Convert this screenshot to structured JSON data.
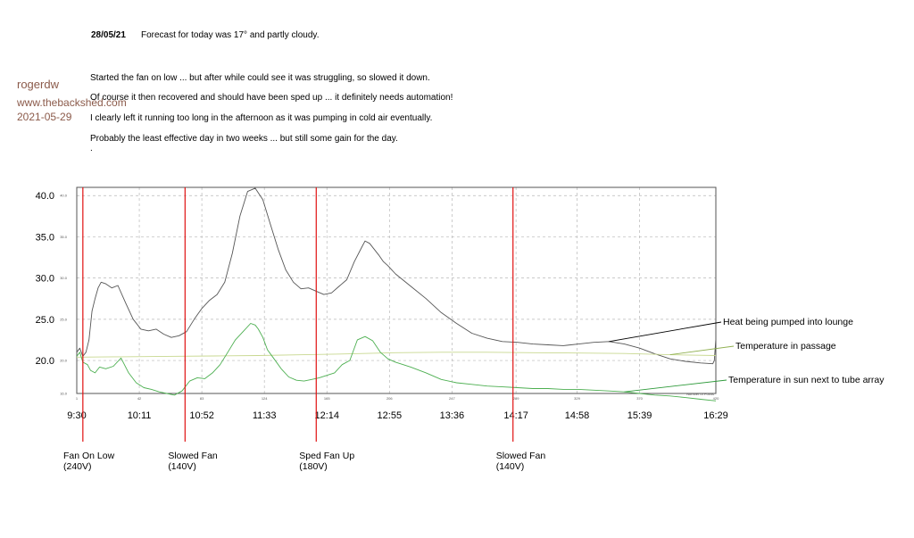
{
  "header": {
    "date": "28/05/21",
    "forecast": "Forecast for today was 17° and partly cloudy.",
    "lines": [
      "Started the fan on low  ...  but after while could see it was struggling, so slowed it down.",
      "Of course it then recovered and should have been sped up  ...  it definitely needs automation!",
      "I clearly left it running too long in the afternoon as it was pumping in cold air eventually.",
      "Probably the least effective day in two weeks  ...  but still some gain for the day.",
      "."
    ]
  },
  "signature": {
    "name": "rogerdw",
    "site": "www.thebackshed.com",
    "date": "2021-05-29"
  },
  "colors": {
    "lounge": "#555555",
    "passage": "#c8d890",
    "sun": "#4caf50",
    "event_line": "#e01010",
    "grid": "#b8b8b8"
  },
  "chart_data": {
    "type": "line",
    "xlim": [
      1,
      420
    ],
    "ylim": [
      16,
      41
    ],
    "y_ticks": [
      {
        "v": 40,
        "label": "40.0",
        "small": "40.0"
      },
      {
        "v": 35,
        "label": "35.0",
        "small": "35.0"
      },
      {
        "v": 30,
        "label": "30.0",
        "small": "30.0"
      },
      {
        "v": 25,
        "label": "25.0",
        "small": "25.0"
      },
      {
        "v": 20,
        "label": "20.0",
        "small": "20.0"
      },
      {
        "v": 16,
        "label": "",
        "small": "16.0"
      }
    ],
    "x_small_ticks": [
      {
        "x": 1,
        "label": "1"
      },
      {
        "x": 42,
        "label": "42"
      },
      {
        "x": 83,
        "label": "83"
      },
      {
        "x": 124,
        "label": "124"
      },
      {
        "x": 165,
        "label": "165"
      },
      {
        "x": 206,
        "label": "206"
      },
      {
        "x": 247,
        "label": "247"
      },
      {
        "x": 289,
        "label": "289"
      },
      {
        "x": 329,
        "label": "329"
      },
      {
        "x": 370,
        "label": "370"
      },
      {
        "x": 420,
        "label": "420"
      }
    ],
    "time_labels": [
      {
        "x": 1,
        "label": "9:30"
      },
      {
        "x": 42,
        "label": "10:11"
      },
      {
        "x": 83,
        "label": "10:52"
      },
      {
        "x": 124,
        "label": "11:33"
      },
      {
        "x": 165,
        "label": "12:14"
      },
      {
        "x": 206,
        "label": "12:55"
      },
      {
        "x": 247,
        "label": "13:36"
      },
      {
        "x": 289,
        "label": "14:17"
      },
      {
        "x": 329,
        "label": "14:58"
      },
      {
        "x": 370,
        "label": "15:39"
      },
      {
        "x": 420,
        "label": "16:29"
      }
    ],
    "corner_label": "Number of Points",
    "series": [
      {
        "name": "Heat being pumped into lounge",
        "x": [
          1,
          3,
          5,
          7,
          9,
          11,
          13,
          15,
          17,
          20,
          24,
          28,
          33,
          38,
          43,
          48,
          53,
          58,
          63,
          68,
          73,
          78,
          83,
          88,
          93,
          98,
          103,
          108,
          113,
          118,
          123,
          128,
          133,
          138,
          143,
          148,
          153,
          158,
          163,
          168,
          173,
          178,
          183,
          188,
          190,
          193,
          196,
          199,
          202,
          205,
          210,
          220,
          230,
          240,
          250,
          260,
          270,
          280,
          290,
          300,
          310,
          320,
          330,
          340,
          350,
          360,
          370,
          380,
          390,
          400,
          410,
          418,
          419,
          420
        ],
        "y": [
          21.0,
          21.5,
          20.5,
          21.0,
          22.5,
          26.0,
          27.5,
          28.8,
          29.5,
          29.3,
          28.8,
          29.1,
          27.0,
          25.0,
          23.8,
          23.6,
          23.8,
          23.2,
          22.8,
          23.0,
          23.5,
          25.0,
          26.3,
          27.3,
          28.0,
          29.5,
          33.0,
          37.5,
          40.5,
          40.9,
          39.5,
          36.5,
          33.5,
          31.0,
          29.5,
          28.7,
          28.8,
          28.4,
          28.0,
          28.2,
          29.0,
          29.8,
          32.0,
          33.8,
          34.5,
          34.2,
          33.5,
          32.8,
          32.0,
          31.5,
          30.5,
          29.0,
          27.5,
          25.8,
          24.5,
          23.3,
          22.7,
          22.3,
          22.2,
          22.0,
          21.9,
          21.8,
          22.0,
          22.2,
          22.3,
          22.0,
          21.5,
          20.8,
          20.2,
          19.9,
          19.7,
          19.6,
          20.0,
          22.6
        ]
      },
      {
        "name": "Temperature in passage",
        "x": [
          1,
          30,
          60,
          90,
          120,
          150,
          180,
          210,
          240,
          270,
          300,
          330,
          360,
          390,
          420
        ],
        "y": [
          20.4,
          20.45,
          20.5,
          20.55,
          20.6,
          20.7,
          20.8,
          20.95,
          21.0,
          21.0,
          20.95,
          20.9,
          20.85,
          20.7,
          20.6
        ]
      },
      {
        "name": "Temperature in sun next to tube array",
        "x": [
          1,
          3,
          5,
          8,
          10,
          13,
          16,
          20,
          25,
          30,
          35,
          40,
          45,
          50,
          55,
          60,
          65,
          70,
          75,
          80,
          85,
          90,
          95,
          100,
          105,
          110,
          115,
          118,
          120,
          123,
          126,
          130,
          135,
          140,
          145,
          150,
          155,
          160,
          165,
          170,
          175,
          180,
          185,
          190,
          195,
          200,
          205,
          210,
          215,
          220,
          230,
          240,
          250,
          260,
          270,
          280,
          290,
          300,
          310,
          320,
          330,
          340,
          350,
          360,
          370,
          380,
          390,
          400,
          410,
          420
        ],
        "y": [
          20.5,
          21.0,
          19.8,
          19.5,
          18.8,
          18.5,
          19.2,
          19.0,
          19.3,
          20.3,
          18.5,
          17.3,
          16.7,
          16.5,
          16.2,
          16.0,
          15.8,
          16.3,
          17.5,
          17.9,
          17.8,
          18.5,
          19.5,
          21.0,
          22.5,
          23.5,
          24.5,
          24.3,
          23.8,
          22.8,
          21.3,
          20.3,
          19.0,
          18.0,
          17.6,
          17.5,
          17.7,
          17.9,
          18.2,
          18.5,
          19.5,
          20.0,
          22.5,
          22.9,
          22.4,
          21.0,
          20.2,
          19.8,
          19.5,
          19.2,
          18.5,
          17.7,
          17.3,
          17.1,
          16.9,
          16.8,
          16.7,
          16.6,
          16.6,
          16.5,
          16.5,
          16.4,
          16.3,
          16.2,
          16.0,
          15.8,
          15.7,
          15.5,
          15.3,
          15.1
        ]
      }
    ],
    "annotations": [
      {
        "label": "Heat being pumped into lounge",
        "series": 0
      },
      {
        "label": "Temperature in passage",
        "series": 1
      },
      {
        "label": "Temperature in sun next to tube array",
        "series": 2
      }
    ],
    "events": [
      {
        "x": 5,
        "label": "Fan On Low\n(240V)"
      },
      {
        "x": 72,
        "label": "Slowed Fan\n(140V)"
      },
      {
        "x": 158,
        "label": "Sped Fan Up\n(180V)"
      },
      {
        "x": 287,
        "label": "Slowed Fan\n(140V)"
      }
    ],
    "grid": true
  }
}
